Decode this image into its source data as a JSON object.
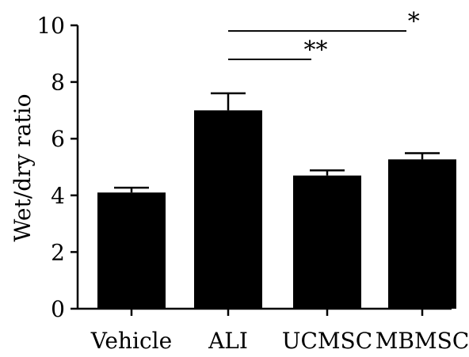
{
  "chart_data": {
    "type": "bar",
    "categories": [
      "Vehicle",
      "ALI",
      "UCMSC",
      "MBMSC"
    ],
    "values": [
      4.1,
      7.0,
      4.7,
      5.27
    ],
    "errors": [
      0.17,
      0.6,
      0.18,
      0.22
    ],
    "ylabel": "Wet/dry ratio",
    "xlabel": "",
    "ylim": [
      0,
      10
    ],
    "yticks": [
      0,
      2,
      4,
      6,
      8,
      10
    ],
    "bar_color": "#000000",
    "grid": false,
    "significance": [
      {
        "from": "ALI",
        "to": "MBMSC",
        "label": "*",
        "level": 9.8
      },
      {
        "from": "ALI",
        "to": "UCMSC",
        "label": "**",
        "level": 8.8
      }
    ]
  }
}
